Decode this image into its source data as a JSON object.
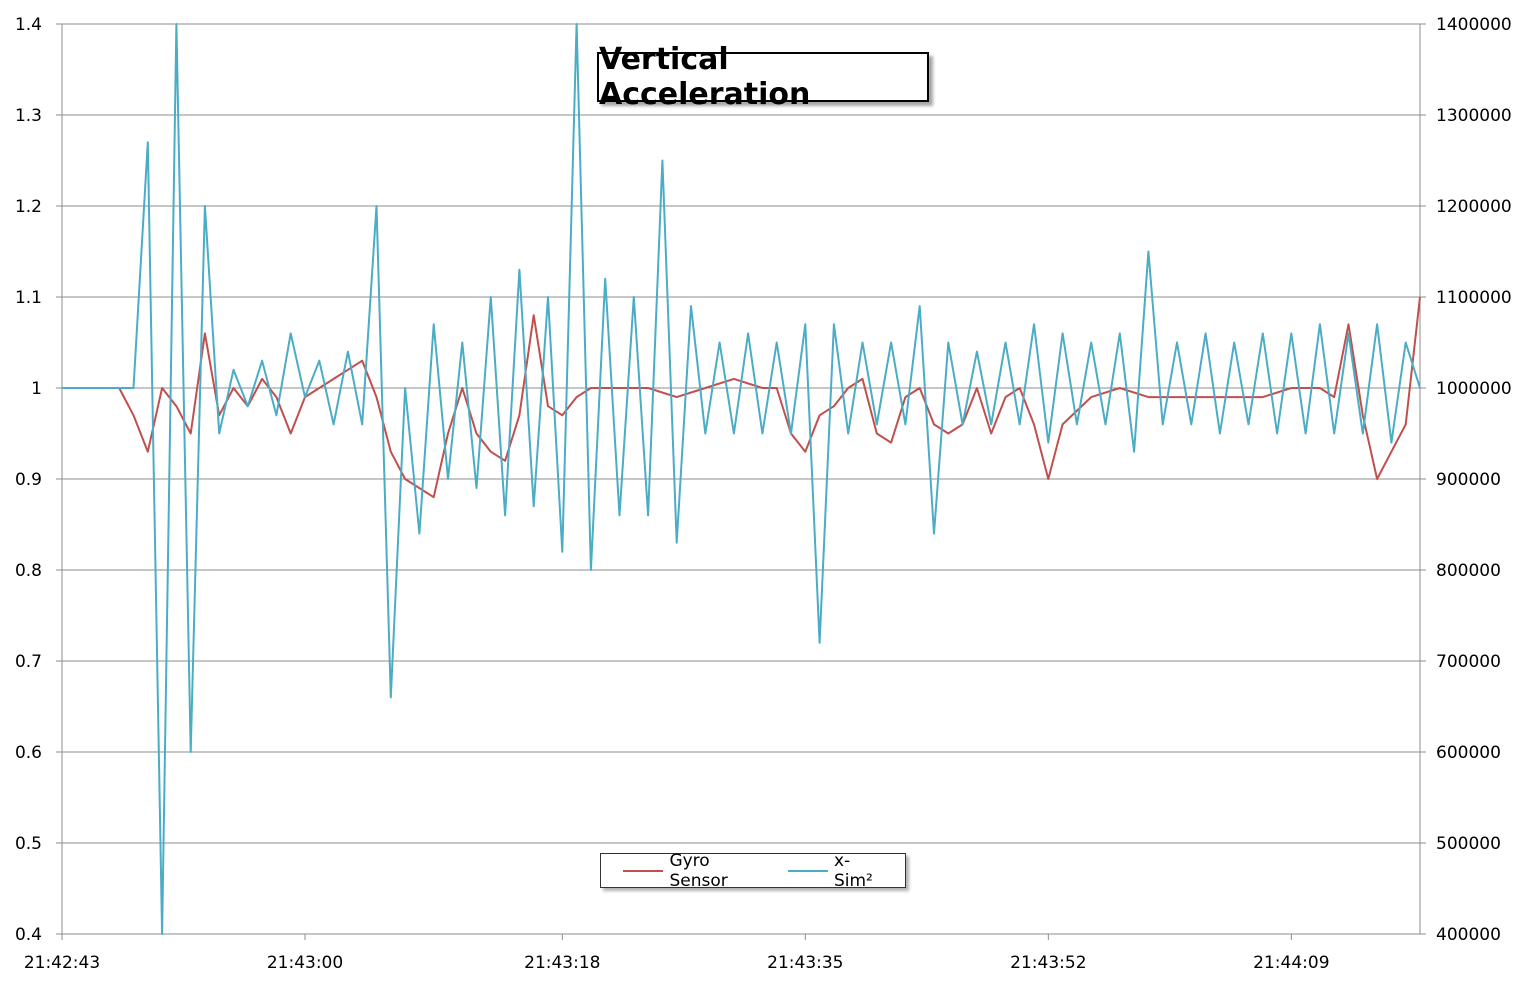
{
  "title": "Vertical Acceleration",
  "legend": {
    "items": [
      {
        "name": "Gyro Sensor",
        "color": "#c0504d"
      },
      {
        "name": "x-Sim²",
        "color": "#4bacc6"
      }
    ],
    "placement": "bottom-center"
  },
  "chart_data": {
    "type": "line",
    "title": "Vertical Acceleration",
    "grid": true,
    "x_tick_labels": [
      "21:42:43",
      "21:43:00",
      "21:43:18",
      "21:43:35",
      "21:43:52",
      "21:44:09"
    ],
    "x_range_seconds_labels": [
      "21:42:43",
      "21:44:18"
    ],
    "y_left": {
      "min": 0.4,
      "max": 1.4,
      "step": 0.1,
      "tick_labels": [
        "0.4",
        "0.5",
        "0.6",
        "0.7",
        "0.8",
        "0.9",
        "1",
        "1.1",
        "1.2",
        "1.3",
        "1.4"
      ]
    },
    "y_right": {
      "min": 400000,
      "max": 1400000,
      "step": 100000,
      "tick_labels": [
        "400000",
        "500000",
        "600000",
        "700000",
        "800000",
        "900000",
        "1000000",
        "1100000",
        "1200000",
        "1300000",
        "1400000"
      ]
    },
    "series": [
      {
        "name": "Gyro Sensor",
        "axis": "left",
        "color": "#c0504d",
        "time": [
          "21:42:43",
          "21:42:44",
          "21:42:47",
          "21:42:48",
          "21:42:49",
          "21:42:50",
          "21:42:51",
          "21:42:52",
          "21:42:53",
          "21:42:54",
          "21:42:55",
          "21:42:56",
          "21:42:57",
          "21:42:58",
          "21:42:59",
          "21:43:00",
          "21:43:01",
          "21:43:02",
          "21:43:03",
          "21:43:04",
          "21:43:05",
          "21:43:06",
          "21:43:07",
          "21:43:08",
          "21:43:09",
          "21:43:10",
          "21:43:11",
          "21:43:12",
          "21:43:13",
          "21:43:14",
          "21:43:15",
          "21:43:16",
          "21:43:17",
          "21:43:18",
          "21:43:19",
          "21:43:20",
          "21:43:22",
          "21:43:24",
          "21:43:26",
          "21:43:28",
          "21:43:30",
          "21:43:32",
          "21:43:33",
          "21:43:34",
          "21:43:35",
          "21:43:36",
          "21:43:37",
          "21:43:38",
          "21:43:39",
          "21:43:40",
          "21:43:41",
          "21:43:42",
          "21:43:43",
          "21:43:44",
          "21:43:45",
          "21:43:46",
          "21:43:47",
          "21:43:48",
          "21:43:49",
          "21:43:50",
          "21:43:51",
          "21:43:52",
          "21:43:53",
          "21:43:55",
          "21:43:57",
          "21:43:59",
          "21:44:01",
          "21:44:03",
          "21:44:05",
          "21:44:07",
          "21:44:09",
          "21:44:11",
          "21:44:12",
          "21:44:13",
          "21:44:14",
          "21:44:15",
          "21:44:16",
          "21:44:17",
          "21:44:18"
        ],
        "values": [
          1.0,
          1.0,
          1.0,
          0.97,
          0.93,
          1.0,
          0.98,
          0.95,
          1.06,
          0.97,
          1.0,
          0.98,
          1.01,
          0.99,
          0.95,
          0.99,
          1.0,
          1.01,
          1.02,
          1.03,
          0.99,
          0.93,
          0.9,
          0.89,
          0.88,
          0.95,
          1.0,
          0.95,
          0.93,
          0.92,
          0.97,
          1.08,
          0.98,
          0.97,
          0.99,
          1.0,
          1.0,
          1.0,
          0.99,
          1.0,
          1.01,
          1.0,
          1.0,
          0.95,
          0.93,
          0.97,
          0.98,
          1.0,
          1.01,
          0.95,
          0.94,
          0.99,
          1.0,
          0.96,
          0.95,
          0.96,
          1.0,
          0.95,
          0.99,
          1.0,
          0.96,
          0.9,
          0.96,
          0.99,
          1.0,
          0.99,
          0.99,
          0.99,
          0.99,
          0.99,
          1.0,
          1.0,
          0.99,
          1.07,
          0.97,
          0.9,
          0.93,
          0.96,
          1.1
        ]
      },
      {
        "name": "x-Sim²",
        "axis": "right",
        "color": "#4bacc6",
        "time": [
          "21:42:43",
          "21:42:44",
          "21:42:45",
          "21:42:46",
          "21:42:47",
          "21:42:48",
          "21:42:49",
          "21:42:50",
          "21:42:51",
          "21:42:52",
          "21:42:53",
          "21:42:54",
          "21:42:55",
          "21:42:56",
          "21:42:57",
          "21:42:58",
          "21:42:59",
          "21:43:00",
          "21:43:01",
          "21:43:02",
          "21:43:03",
          "21:43:04",
          "21:43:05",
          "21:43:06",
          "21:43:07",
          "21:43:08",
          "21:43:09",
          "21:43:10",
          "21:43:11",
          "21:43:12",
          "21:43:13",
          "21:43:14",
          "21:43:15",
          "21:43:16",
          "21:43:17",
          "21:43:18",
          "21:43:19",
          "21:43:20",
          "21:43:21",
          "21:43:22",
          "21:43:23",
          "21:43:24",
          "21:43:25",
          "21:43:26",
          "21:43:27",
          "21:43:28",
          "21:43:29",
          "21:43:30",
          "21:43:31",
          "21:43:32",
          "21:43:33",
          "21:43:34",
          "21:43:35",
          "21:43:36",
          "21:43:37",
          "21:43:38",
          "21:43:39",
          "21:43:40",
          "21:43:41",
          "21:43:42",
          "21:43:43",
          "21:43:44",
          "21:43:45",
          "21:43:46",
          "21:43:47",
          "21:43:48",
          "21:43:49",
          "21:43:50",
          "21:43:51",
          "21:43:52",
          "21:43:53",
          "21:43:54",
          "21:43:55",
          "21:43:56",
          "21:43:57",
          "21:43:58",
          "21:43:59",
          "21:44:00",
          "21:44:01",
          "21:44:02",
          "21:44:03",
          "21:44:04",
          "21:44:05",
          "21:44:06",
          "21:44:07",
          "21:44:08",
          "21:44:09",
          "21:44:10",
          "21:44:11",
          "21:44:12",
          "21:44:13",
          "21:44:14",
          "21:44:15",
          "21:44:16",
          "21:44:17",
          "21:44:18"
        ],
        "values": [
          1000000,
          1000000,
          1000000,
          1000000,
          1000000,
          1000000,
          1270000,
          400000,
          1400000,
          600000,
          1200000,
          950000,
          1020000,
          980000,
          1030000,
          970000,
          1060000,
          990000,
          1030000,
          960000,
          1040000,
          960000,
          1200000,
          660000,
          1000000,
          840000,
          1070000,
          900000,
          1050000,
          890000,
          1100000,
          860000,
          1130000,
          870000,
          1100000,
          820000,
          1400000,
          800000,
          1120000,
          860000,
          1100000,
          860000,
          1250000,
          830000,
          1090000,
          950000,
          1050000,
          950000,
          1060000,
          950000,
          1050000,
          950000,
          1070000,
          720000,
          1070000,
          950000,
          1050000,
          960000,
          1050000,
          960000,
          1090000,
          840000,
          1050000,
          960000,
          1040000,
          960000,
          1050000,
          960000,
          1070000,
          940000,
          1060000,
          960000,
          1050000,
          960000,
          1060000,
          930000,
          1150000,
          960000,
          1050000,
          960000,
          1060000,
          950000,
          1050000,
          960000,
          1060000,
          950000,
          1060000,
          950000,
          1070000,
          950000,
          1060000,
          950000,
          1070000,
          940000,
          1050000,
          1000000
        ]
      }
    ]
  }
}
